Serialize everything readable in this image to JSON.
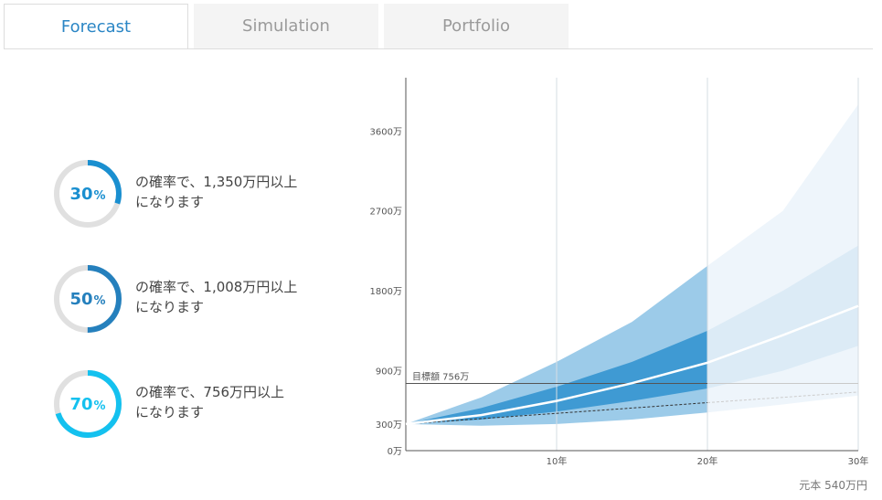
{
  "tabs": [
    {
      "label": "Forecast",
      "active": true
    },
    {
      "label": "Simulation",
      "active": false
    },
    {
      "label": "Portfolio",
      "active": false
    }
  ],
  "probabilities": [
    {
      "value": 30,
      "unit": "%",
      "line1": "の確率で、1,350万円以上",
      "line2": "になります",
      "color": "#1a8fd0"
    },
    {
      "value": 50,
      "unit": "%",
      "line1": "の確率で、1,008万円以上",
      "line2": "になります",
      "color": "#2580bd"
    },
    {
      "value": 70,
      "unit": "%",
      "line1": "の確率で、756万円以上",
      "line2": "になります",
      "color": "#14c1ef"
    }
  ],
  "colors": {
    "outer_band": "#9ccbe9",
    "inner_band": "#3f9ad3",
    "future_outer": "#eef5fb",
    "future_inner": "#dcebf6",
    "median_line": "#ffffff",
    "principal_line": "#333333",
    "target_line": "#555555",
    "ring_track": "#e0e0e0"
  },
  "chart_data": {
    "type": "area",
    "x_unit": "年",
    "xlim": [
      0,
      30
    ],
    "ylim": [
      0,
      4200
    ],
    "x_ticks": [
      10,
      20,
      30
    ],
    "x_tick_labels": [
      "10年",
      "20年",
      "30年"
    ],
    "y_ticks": [
      0,
      300,
      900,
      1800,
      2700,
      3600
    ],
    "y_tick_labels": [
      "0万",
      "300万",
      "900万",
      "1800万",
      "2700万",
      "3600万"
    ],
    "grid_x": true,
    "highlight_until_x": 20,
    "target": {
      "value": 756,
      "label": "目標額 756万"
    },
    "x": [
      0,
      5,
      10,
      15,
      20,
      25,
      30
    ],
    "series": [
      {
        "role": "outer_upper",
        "values": [
          300,
          600,
          1000,
          1450,
          2080,
          2700,
          3900
        ]
      },
      {
        "role": "inner_upper",
        "values": [
          300,
          480,
          720,
          1000,
          1350,
          1800,
          2310
        ]
      },
      {
        "role": "median",
        "values": [
          300,
          400,
          560,
          760,
          990,
          1300,
          1630
        ]
      },
      {
        "role": "inner_lower",
        "values": [
          300,
          350,
          440,
          560,
          700,
          900,
          1180
        ]
      },
      {
        "role": "outer_lower",
        "values": [
          300,
          280,
          300,
          350,
          430,
          520,
          620
        ]
      },
      {
        "role": "principal",
        "values": [
          300,
          360,
          420,
          480,
          540,
          600,
          660
        ]
      }
    ],
    "caption": "元本 540万円"
  }
}
